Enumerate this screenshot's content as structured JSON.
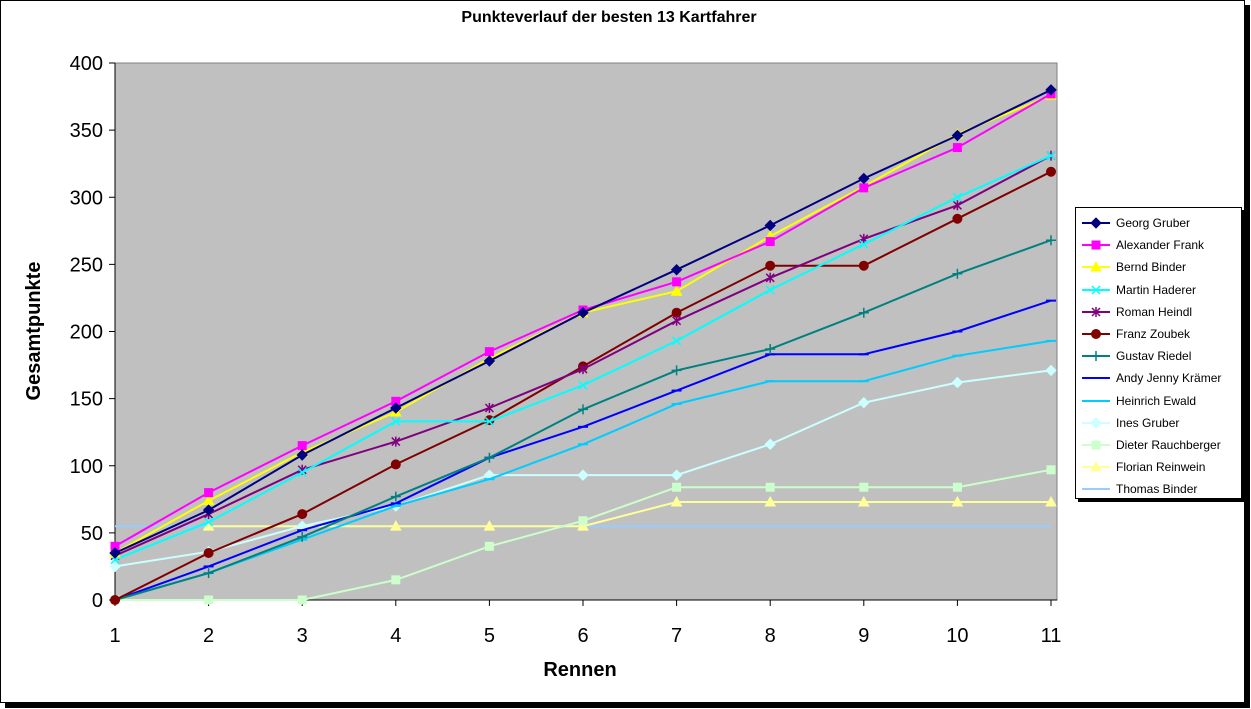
{
  "chart_data": {
    "type": "line",
    "title": "Punkteverlauf der besten 13 Kartfahrer",
    "xlabel": "Rennen",
    "ylabel": "Gesamtpunkte",
    "x": [
      1,
      2,
      3,
      4,
      5,
      6,
      7,
      8,
      9,
      10,
      11
    ],
    "ylim": [
      0,
      400
    ],
    "yticks": [
      0,
      50,
      100,
      150,
      200,
      250,
      300,
      350,
      400
    ],
    "grid": false,
    "plot_background": "#c0c0c0",
    "legend_position": "right",
    "series": [
      {
        "name": "Georg Gruber",
        "color": "#000080",
        "marker": "diamond",
        "values": [
          35,
          67,
          108,
          143,
          178,
          214,
          246,
          279,
          314,
          346,
          380
        ]
      },
      {
        "name": "Alexander Frank",
        "color": "#ff00ff",
        "marker": "square",
        "values": [
          40,
          80,
          115,
          148,
          185,
          216,
          237,
          267,
          307,
          337,
          377
        ]
      },
      {
        "name": "Bernd Binder",
        "color": "#ffff00",
        "marker": "triangle",
        "values": [
          35,
          74,
          110,
          140,
          180,
          214,
          230,
          271,
          308,
          347,
          376
        ]
      },
      {
        "name": "Martin Haderer",
        "color": "#00ffff",
        "marker": "x",
        "values": [
          30,
          58,
          95,
          133,
          133,
          160,
          193,
          231,
          265,
          300,
          331
        ]
      },
      {
        "name": "Roman Heindl",
        "color": "#800080",
        "marker": "star",
        "values": [
          33,
          64,
          97,
          118,
          143,
          172,
          208,
          240,
          269,
          294,
          331
        ]
      },
      {
        "name": "Franz Zoubek",
        "color": "#800000",
        "marker": "circle",
        "values": [
          0,
          35,
          64,
          101,
          134,
          174,
          214,
          249,
          249,
          284,
          319
        ]
      },
      {
        "name": "Gustav Riedel",
        "color": "#008080",
        "marker": "plus",
        "values": [
          0,
          20,
          47,
          77,
          106,
          142,
          171,
          187,
          214,
          243,
          268
        ]
      },
      {
        "name": "Andy Jenny Krämer",
        "color": "#0000ff",
        "marker": "dash",
        "values": [
          0,
          25,
          52,
          72,
          106,
          129,
          156,
          183,
          183,
          200,
          223
        ]
      },
      {
        "name": "Heinrich Ewald",
        "color": "#00ccff",
        "marker": "dash",
        "values": [
          0,
          20,
          45,
          70,
          90,
          116,
          146,
          163,
          163,
          182,
          193
        ]
      },
      {
        "name": "Ines Gruber",
        "color": "#ccffff",
        "marker": "diamond",
        "values": [
          25,
          36,
          55,
          70,
          93,
          93,
          93,
          116,
          147,
          162,
          171
        ]
      },
      {
        "name": "Dieter Rauchberger",
        "color": "#ccffcc",
        "marker": "square",
        "values": [
          0,
          0,
          0,
          15,
          40,
          59,
          84,
          84,
          84,
          84,
          97
        ]
      },
      {
        "name": "Florian Reinwein",
        "color": "#ffff99",
        "marker": "triangle",
        "values": [
          null,
          55,
          55,
          55,
          55,
          55,
          73,
          73,
          73,
          73,
          73
        ]
      },
      {
        "name": "Thomas Binder",
        "color": "#99ccff",
        "marker": "none",
        "values": [
          55,
          55,
          55,
          55,
          55,
          55,
          55,
          55,
          55,
          55,
          55
        ]
      }
    ]
  }
}
